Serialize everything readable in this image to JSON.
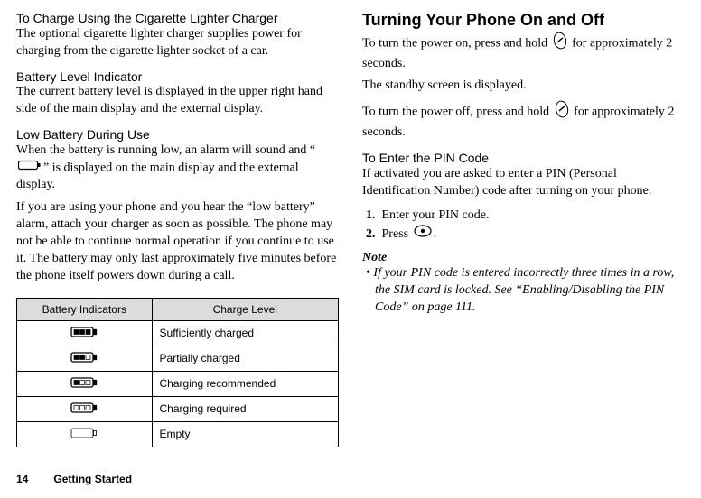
{
  "left": {
    "h1": "To Charge Using the Cigarette Lighter Charger",
    "p1": "The optional cigarette lighter charger supplies power for charging from the cigarette lighter socket of a car.",
    "h2": "Battery Level Indicator",
    "p2": "The current battery level is displayed in the upper right hand side of the main display and the external display.",
    "h3": "Low Battery During Use",
    "p3a": "When the battery is running low, an alarm will sound and “",
    "p3b": "” is displayed on the main display and the external display.",
    "p4": "If you are using your phone and you hear the “low battery” alarm, attach your charger as soon as possible. The phone may not be able to continue normal operation if you continue to use it. The battery may only last approximately five minutes before the phone itself powers down during a call.",
    "table": {
      "header1": "Battery Indicators",
      "header2": "Charge Level",
      "rows": [
        {
          "bars": 3,
          "label": "Sufficiently charged"
        },
        {
          "bars": 2,
          "label": "Partially charged"
        },
        {
          "bars": 1,
          "label": "Charging recommended"
        },
        {
          "bars": 0,
          "label": "Charging required"
        },
        {
          "bars": -1,
          "label": "Empty"
        }
      ]
    }
  },
  "right": {
    "h1": "Turning Your Phone On and Off",
    "p1a": "To turn the power on, press and hold ",
    "p1b": " for approximately 2 seconds.",
    "p2": "The standby screen is displayed.",
    "p3a": "To turn the power off, press and hold ",
    "p3b": " for approximately 2 seconds.",
    "h2": "To Enter the PIN Code",
    "p4": "If activated you are asked to enter a PIN (Personal Identification Number) code after turning on your phone.",
    "step1": "Enter your PIN code.",
    "step2a": "Press ",
    "step2b": ".",
    "noteLabel": "Note",
    "noteText": "If your PIN code is entered incorrectly three times in a row, the SIM card is locked. See “Enabling/Disabling the PIN Code” on page 111."
  },
  "footer": {
    "pageNum": "14",
    "section": "Getting Started"
  },
  "colors": {
    "tableHeaderBg": "#dcdcdc",
    "border": "#000000",
    "text": "#000000"
  }
}
